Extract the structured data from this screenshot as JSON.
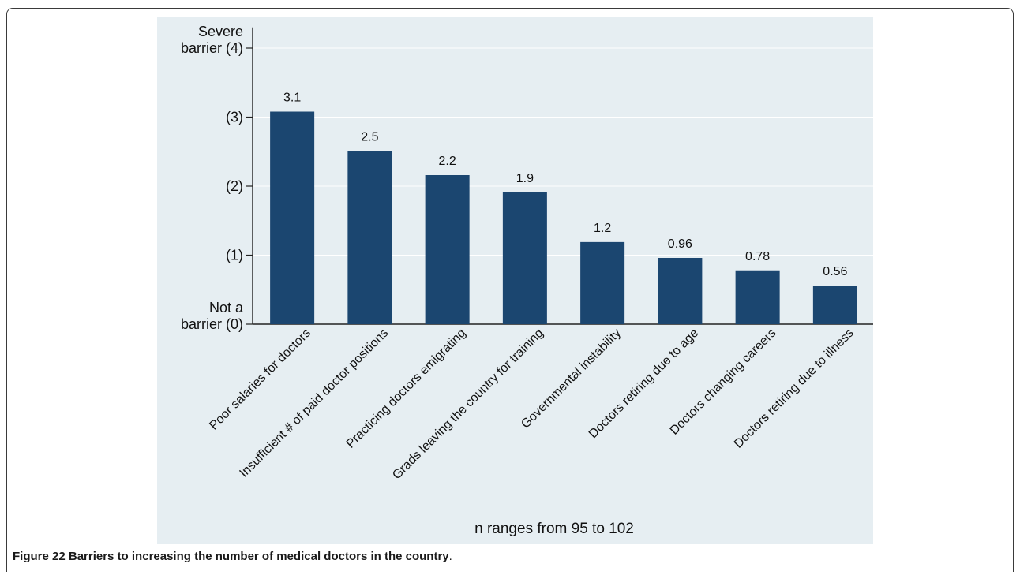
{
  "caption": {
    "label": "Figure 22",
    "text": "Barriers to increasing the number of medical doctors in the country",
    "suffix": "."
  },
  "chart_data": {
    "type": "bar",
    "title": "",
    "xlabel": "n ranges from 95 to 102",
    "ylabel": "",
    "ylim": [
      0,
      4.3
    ],
    "grid": true,
    "bar_color": "#1b4670",
    "background_color": "#e6eef2",
    "grid_color": "#ffffff",
    "yticks": [
      {
        "value": 4,
        "lines": [
          "Severe",
          "barrier (4)"
        ]
      },
      {
        "value": 3,
        "lines": [
          "(3)"
        ]
      },
      {
        "value": 2,
        "lines": [
          "(2)"
        ]
      },
      {
        "value": 1,
        "lines": [
          "(1)"
        ]
      },
      {
        "value": 0,
        "lines": [
          "Not a",
          "barrier (0)"
        ]
      }
    ],
    "categories": [
      "Poor salaries for doctors",
      "Insufficient # of paid doctor positions",
      "Practicing doctors emigrating",
      "Grads leaving the country for training",
      "Governmental instability",
      "Doctors retiring due to age",
      "Doctors changing careers",
      "Doctors retiring due to illness"
    ],
    "values": [
      3.08,
      2.51,
      2.16,
      1.91,
      1.19,
      0.96,
      0.78,
      0.56
    ],
    "data_labels": [
      "3.1",
      "2.5",
      "2.2",
      "1.9",
      "1.2",
      "0.96",
      "0.78",
      "0.56"
    ]
  }
}
